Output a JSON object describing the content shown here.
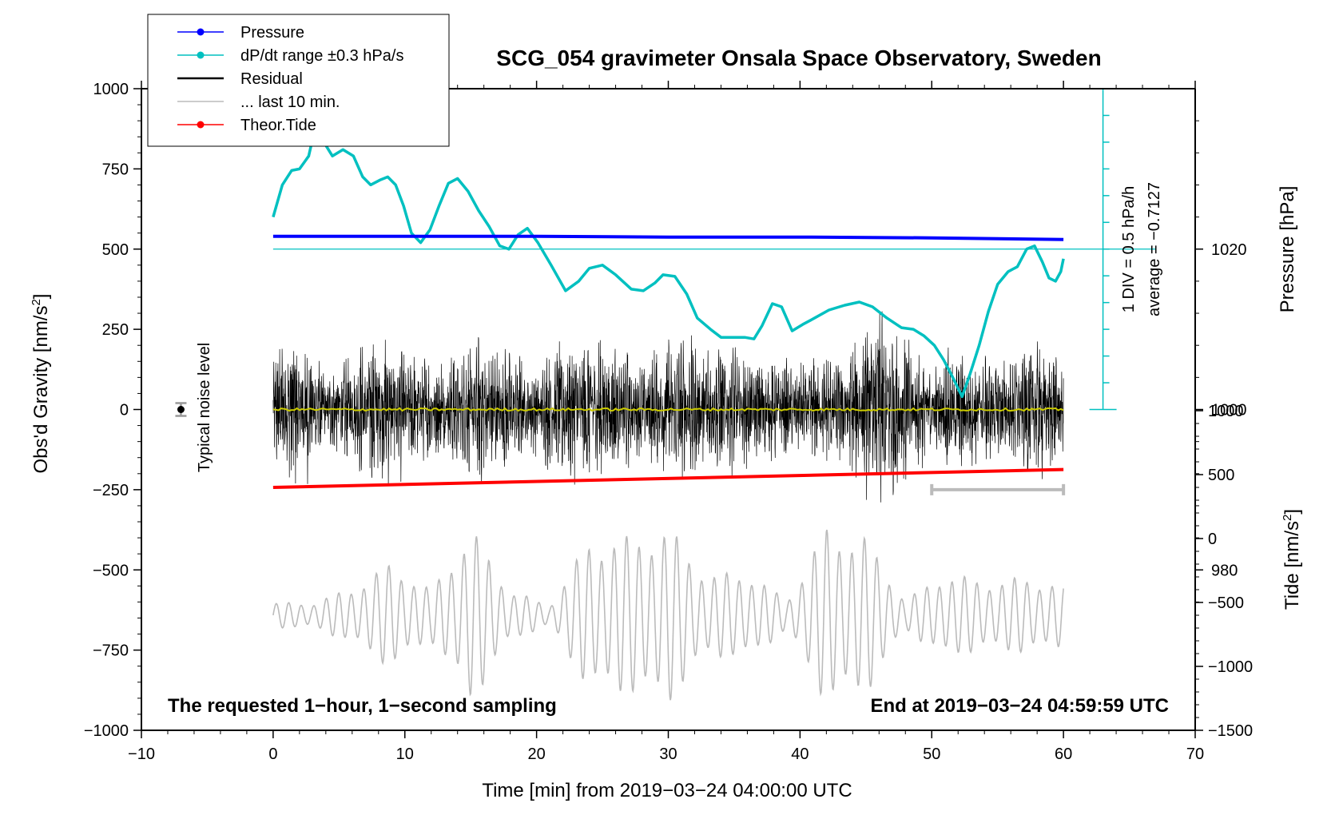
{
  "chart_data": {
    "type": "line",
    "title": "SCG_054 gravimeter Onsala Space Observatory, Sweden",
    "xlabel": "Time [min] from 2019−03−24 04:00:00 UTC",
    "ylabel_left": "Obs'd Gravity [nm/s",
    "ylabel_left_sup": "2",
    "ylabel_left_close": "]",
    "ylabel_right_top": "Pressure [hPa]",
    "ylabel_right_bottom": "Tide [nm/s",
    "ylabel_right_bottom_sup": "2",
    "ylabel_right_bottom_close": "]",
    "xlim": [
      -10,
      70
    ],
    "ylim": [
      -1000,
      1000
    ],
    "pressure_lim": [
      960,
      1040
    ],
    "tide_lim": [
      -1500,
      1500
    ],
    "x_ticks": [
      "−10",
      "0",
      "10",
      "20",
      "30",
      "40",
      "50",
      "60",
      "70"
    ],
    "x_tick_values": [
      -10,
      0,
      10,
      20,
      30,
      40,
      50,
      60,
      70
    ],
    "y_ticks": [
      "1000",
      "750",
      "500",
      "250",
      "0",
      "−250",
      "−500",
      "−750",
      "−1000"
    ],
    "y_tick_values": [
      1000,
      750,
      500,
      250,
      0,
      -250,
      -500,
      -750,
      -1000
    ],
    "pressure_ticks": [
      "1020",
      "1000",
      "980"
    ],
    "pressure_tick_values": [
      1020,
      1000,
      980
    ],
    "tide_ticks": [
      "1000",
      "500",
      "0",
      "−500",
      "−1000",
      "−1500"
    ],
    "tide_tick_values": [
      1000,
      500,
      0,
      -500,
      -1000,
      -1500
    ],
    "legend": [
      {
        "name": "Pressure",
        "color": "#0000ff",
        "marker": true
      },
      {
        "name": "dP/dt range ±0.3 hPa/s",
        "color": "#00c0c0",
        "marker": true
      },
      {
        "name": "Residual",
        "color": "#000000",
        "marker": false
      },
      {
        "name": "... last 10 min.",
        "color": "#bbbbbb",
        "marker": false
      },
      {
        "name": "Theor.Tide",
        "color": "#ff0000",
        "marker": true
      }
    ],
    "series": {
      "pressure": {
        "name": "Pressure",
        "color": "#0000ff",
        "unit": "hPa",
        "x": [
          0,
          10,
          20,
          30,
          40,
          50,
          60
        ],
        "values": [
          1021.6,
          1021.6,
          1021.6,
          1021.5,
          1021.5,
          1021.4,
          1021.2
        ]
      },
      "dpdt": {
        "name": "dP/dt",
        "color": "#00c0c0",
        "unit": "gravity axis",
        "x": [
          0,
          0.7,
          1.4,
          2,
          2.7,
          3.2,
          3.9,
          4.5,
          5.3,
          6.1,
          6.8,
          7.4,
          8.1,
          8.7,
          9.3,
          9.9,
          10.5,
          11.2,
          11.9,
          12.6,
          13.3,
          14,
          14.8,
          15.6,
          16.4,
          17.2,
          17.9,
          18.6,
          19.3,
          20.1,
          21.1,
          22.2,
          23.2,
          24,
          25,
          26,
          27.2,
          28.1,
          29,
          29.6,
          30.5,
          31.4,
          32.2,
          33.2,
          34,
          34.9,
          35.8,
          36.5,
          37.1,
          37.9,
          38.6,
          39.4,
          40.2,
          41.1,
          42.2,
          43.4,
          44.5,
          45.5,
          46.6,
          47.7,
          48.6,
          49.4,
          50.2,
          50.9,
          51.6,
          52.3,
          52.9,
          53.6,
          54.3,
          55,
          55.8,
          56.5,
          57.2,
          57.8,
          58.4,
          58.9,
          59.4,
          59.8,
          60
        ],
        "values": [
          600,
          700,
          745,
          750,
          790,
          880,
          830,
          790,
          810,
          790,
          725,
          700,
          715,
          725,
          700,
          635,
          550,
          520,
          560,
          635,
          705,
          720,
          680,
          620,
          570,
          510,
          500,
          545,
          565,
          520,
          450,
          370,
          400,
          440,
          450,
          420,
          375,
          370,
          395,
          420,
          415,
          360,
          285,
          250,
          225,
          225,
          225,
          220,
          260,
          330,
          320,
          245,
          265,
          285,
          310,
          325,
          335,
          320,
          285,
          255,
          250,
          230,
          200,
          155,
          100,
          40,
          110,
          200,
          305,
          390,
          430,
          445,
          500,
          510,
          460,
          410,
          400,
          430,
          470
        ]
      },
      "residual": {
        "name": "Residual",
        "color": "#000000",
        "x_range": [
          0,
          60
        ],
        "envelope_x": [
          0,
          2,
          4,
          6,
          8,
          10,
          12,
          14,
          16,
          18,
          20,
          22,
          24,
          26,
          28,
          30,
          32,
          34,
          36,
          38,
          40,
          42,
          44,
          46,
          48,
          50,
          52,
          54,
          56,
          58,
          60
        ],
        "envelope_values": [
          190,
          230,
          110,
          150,
          220,
          170,
          140,
          150,
          200,
          160,
          120,
          190,
          210,
          180,
          120,
          200,
          190,
          170,
          160,
          140,
          120,
          150,
          180,
          260,
          200,
          120,
          170,
          150,
          150,
          200,
          150
        ]
      },
      "residual_mean": {
        "name": "Residual mean",
        "color": "#cccc00",
        "x": [
          0,
          60
        ],
        "values": [
          0,
          0
        ]
      },
      "last10": {
        "name": "... last 10 min.",
        "color": "#bbbbbb",
        "unit": "tide axis",
        "x_range": [
          0,
          60
        ],
        "envelope_x": [
          0,
          3,
          6,
          9,
          12,
          15,
          18,
          21,
          24,
          27,
          30,
          33,
          36,
          39,
          42,
          45,
          48,
          51,
          54,
          57,
          60
        ],
        "envelope_values": [
          100,
          100,
          220,
          420,
          200,
          700,
          200,
          80,
          600,
          620,
          700,
          320,
          350,
          120,
          700,
          620,
          120,
          340,
          270,
          300,
          250
        ],
        "baseline": -600
      },
      "tide": {
        "name": "Theor.Tide",
        "color": "#ff0000",
        "unit": "nm/s2",
        "x": [
          0,
          60
        ],
        "values": [
          400,
          540
        ]
      }
    },
    "noise_bar": {
      "label": "Typical noise level",
      "x": -7,
      "y": 0,
      "err": 20
    },
    "pressure_scale_bar": {
      "label": "1 DIV = 0.5 hPa/h",
      "average_label": "average = −0.7127",
      "x": 63,
      "y_top": 1000,
      "y_bottom": 0
    },
    "last10_bar": {
      "x_start": 50,
      "x_end": 60,
      "y": -250
    },
    "reference_line": {
      "y": 500
    },
    "annotations": {
      "left": "The requested 1−hour, 1−second sampling",
      "right": "End at 2019−03−24 04:59:59 UTC"
    }
  }
}
